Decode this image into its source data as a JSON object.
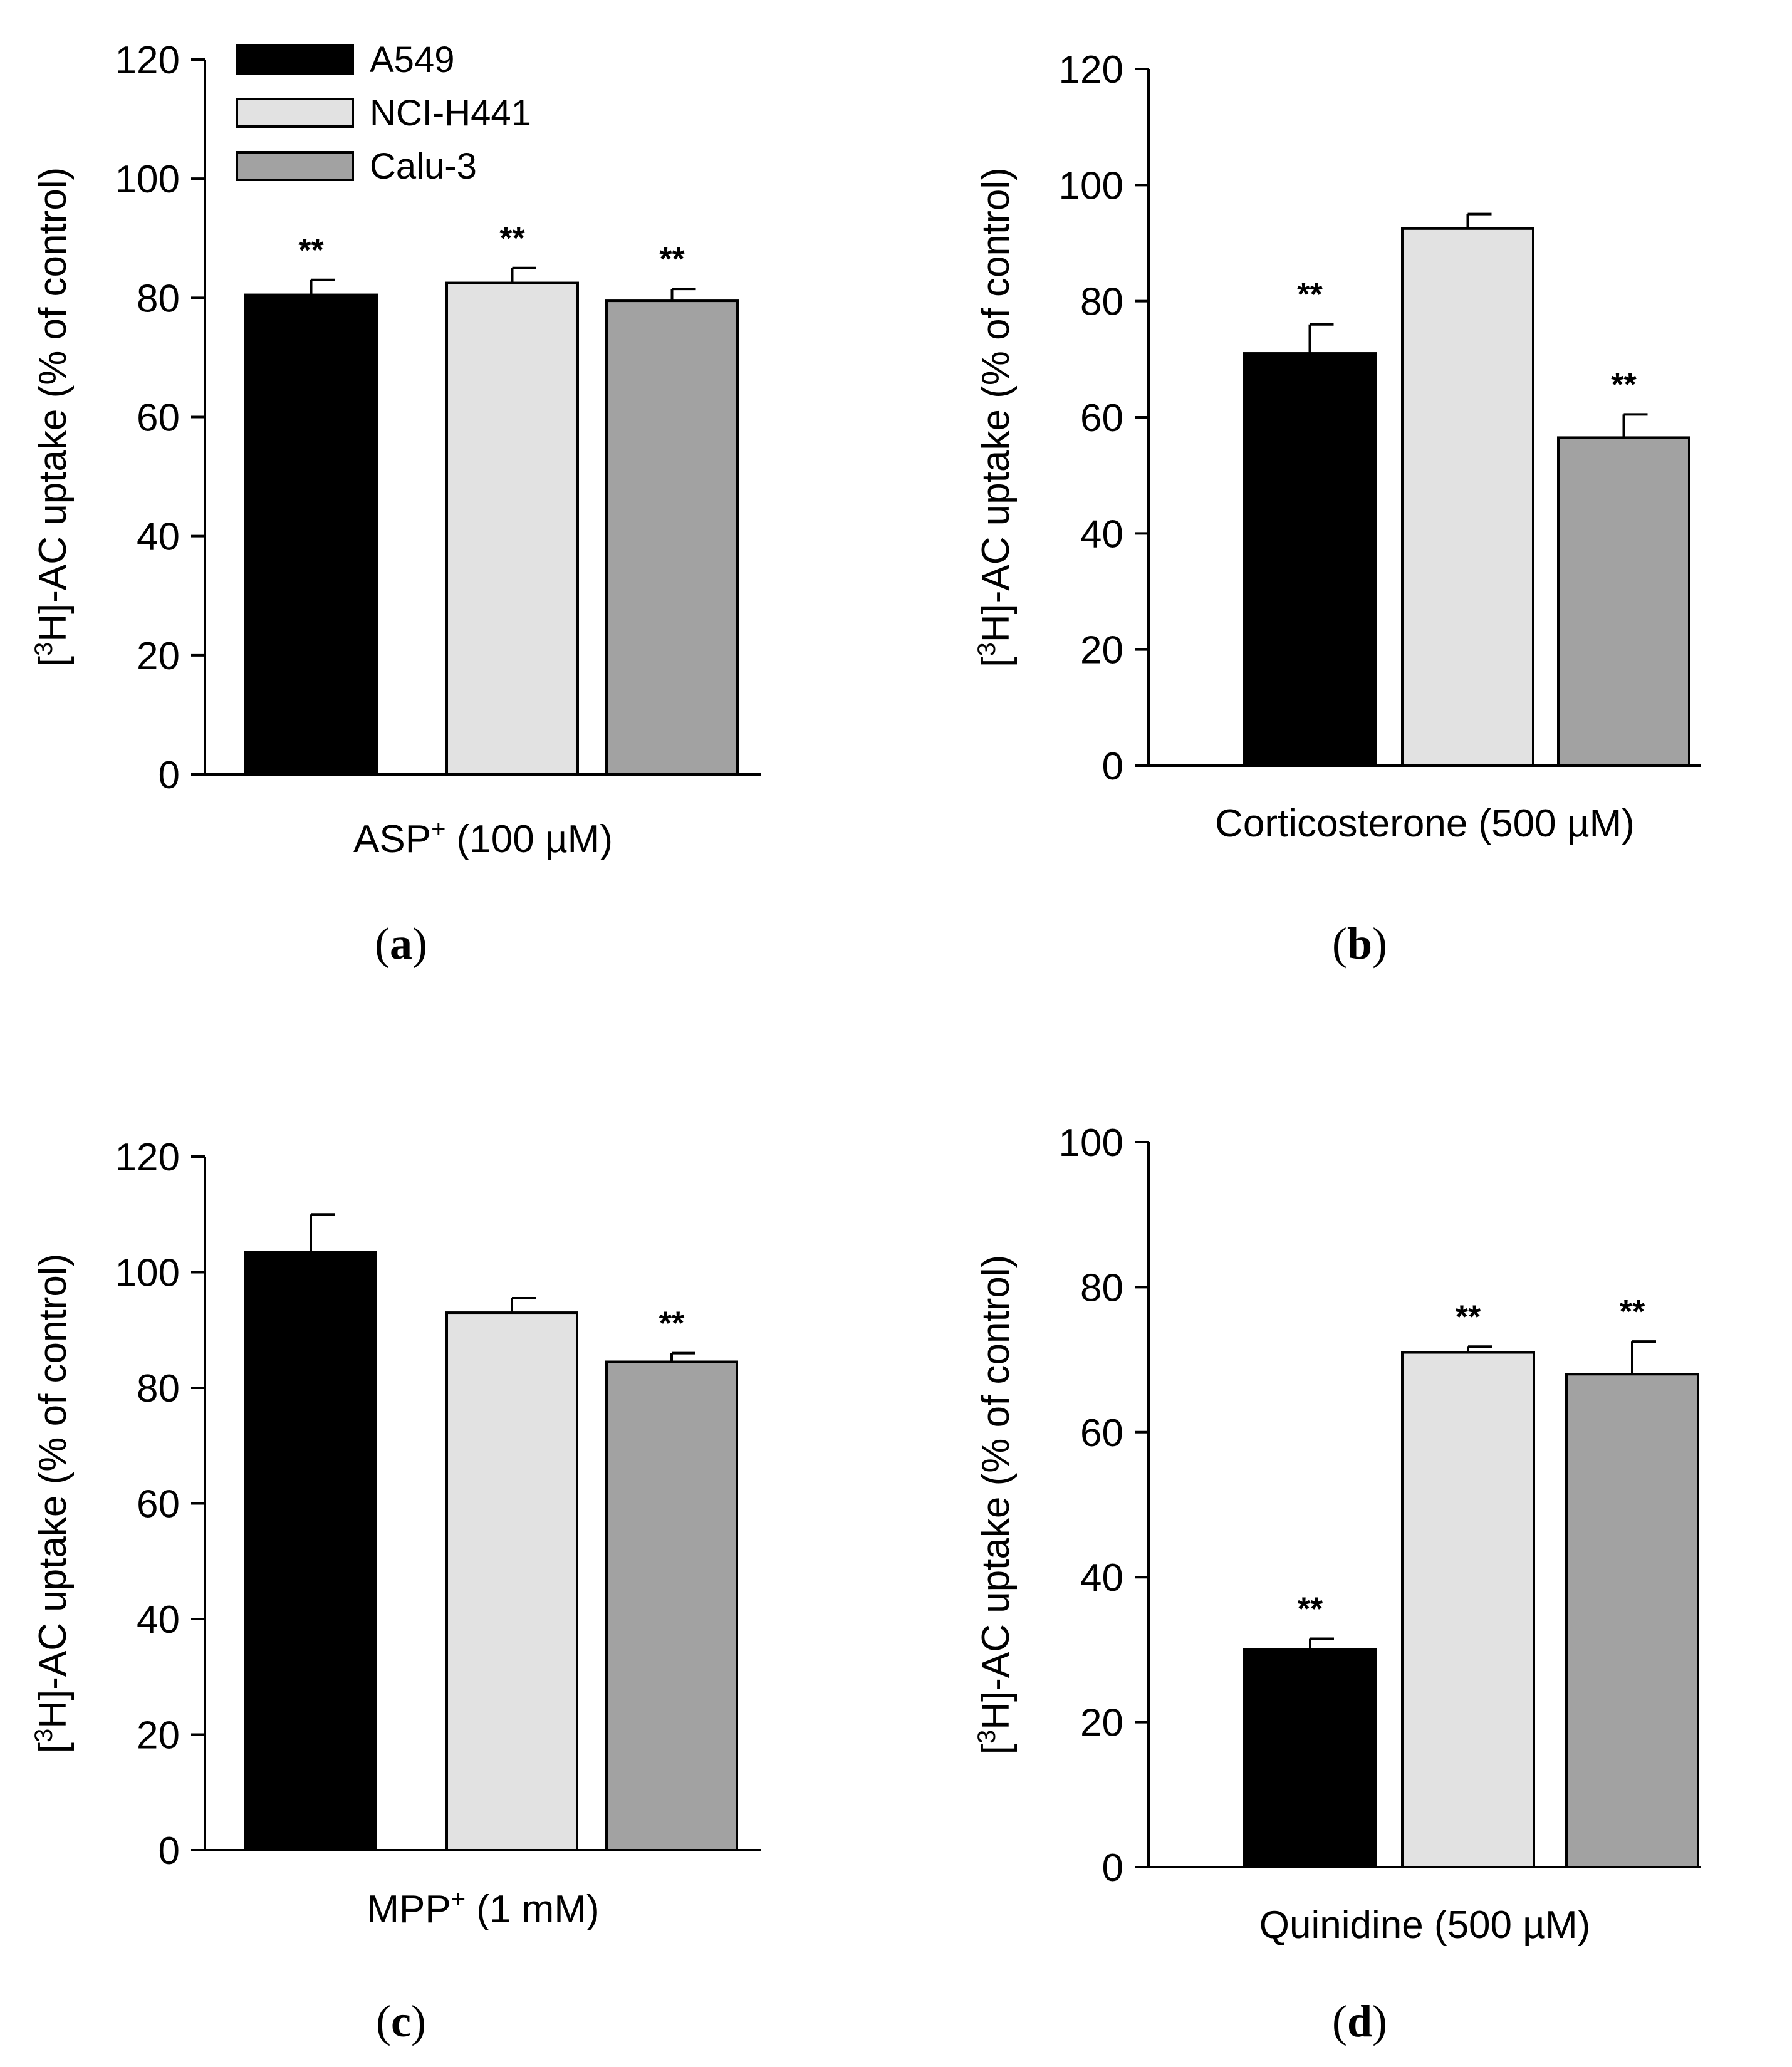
{
  "colors": {
    "A549": "#000000",
    "NCI-H441": "#e2e2e2",
    "Calu-3": "#a2a2a2"
  },
  "legend": [
    "A549",
    "NCI-H441",
    "Calu-3"
  ],
  "chart_data": [
    {
      "type": "bar",
      "panel_label": "a",
      "title": "",
      "xlabel": "ASP+ (100 µM)",
      "xlabel_main": "ASP",
      "xlabel_sup": "+",
      "xlabel_rest": " (100 µM)",
      "ylabel_pre": "[",
      "ylabel_sup": "3",
      "ylabel_post": "H]-AC uptake (% of control)",
      "ylim": [
        0,
        120
      ],
      "yticks": [
        "0",
        "20",
        "40",
        "60",
        "80",
        "100",
        "120"
      ],
      "series": [
        {
          "name": "A549",
          "value": 80.5,
          "error": 2.5,
          "sig": "**"
        },
        {
          "name": "NCI-H441",
          "value": 82.5,
          "error": 2.5,
          "sig": "**"
        },
        {
          "name": "Calu-3",
          "value": 79.5,
          "error": 2.0,
          "sig": "**"
        }
      ]
    },
    {
      "type": "bar",
      "panel_label": "b",
      "title": "",
      "xlabel": "Corticosterone (500 µM)",
      "xlabel_main": "Corticosterone (500 µM)",
      "xlabel_sup": "",
      "xlabel_rest": "",
      "ylabel_pre": "[",
      "ylabel_sup": "3",
      "ylabel_post": "H]-AC uptake (% of control)",
      "ylim": [
        0,
        120
      ],
      "yticks": [
        "0",
        "20",
        "40",
        "60",
        "80",
        "100",
        "120"
      ],
      "series": [
        {
          "name": "A549",
          "value": 71,
          "error": 5,
          "sig": "**"
        },
        {
          "name": "NCI-H441",
          "value": 92.5,
          "error": 2.5,
          "sig": ""
        },
        {
          "name": "Calu-3",
          "value": 56.5,
          "error": 4,
          "sig": "**"
        }
      ]
    },
    {
      "type": "bar",
      "panel_label": "c",
      "title": "",
      "xlabel": "MPP+ (1 mM)",
      "xlabel_main": "MPP",
      "xlabel_sup": "+",
      "xlabel_rest": " (1 mM)",
      "ylabel_pre": "[",
      "ylabel_sup": "3",
      "ylabel_post": "H]-AC uptake (% of control)",
      "ylim": [
        0,
        120
      ],
      "yticks": [
        "0",
        "20",
        "40",
        "60",
        "80",
        "100",
        "120"
      ],
      "series": [
        {
          "name": "A549",
          "value": 103.5,
          "error": 6.5,
          "sig": ""
        },
        {
          "name": "NCI-H441",
          "value": 93,
          "error": 2.5,
          "sig": ""
        },
        {
          "name": "Calu-3",
          "value": 84.5,
          "error": 1.5,
          "sig": "**"
        }
      ]
    },
    {
      "type": "bar",
      "panel_label": "d",
      "title": "",
      "xlabel": "Quinidine (500 µM)",
      "xlabel_main": "Quinidine (500 µM)",
      "xlabel_sup": "",
      "xlabel_rest": "",
      "ylabel_pre": "[",
      "ylabel_sup": "3",
      "ylabel_post": "H]-AC uptake (% of control)",
      "ylim": [
        0,
        100
      ],
      "yticks": [
        "0",
        "20",
        "40",
        "60",
        "80",
        "100"
      ],
      "series": [
        {
          "name": "A549",
          "value": 30,
          "error": 1.5,
          "sig": "**"
        },
        {
          "name": "NCI-H441",
          "value": 71,
          "error": 0.8,
          "sig": "**"
        },
        {
          "name": "Calu-3",
          "value": 68,
          "error": 4.5,
          "sig": "**"
        }
      ]
    }
  ]
}
